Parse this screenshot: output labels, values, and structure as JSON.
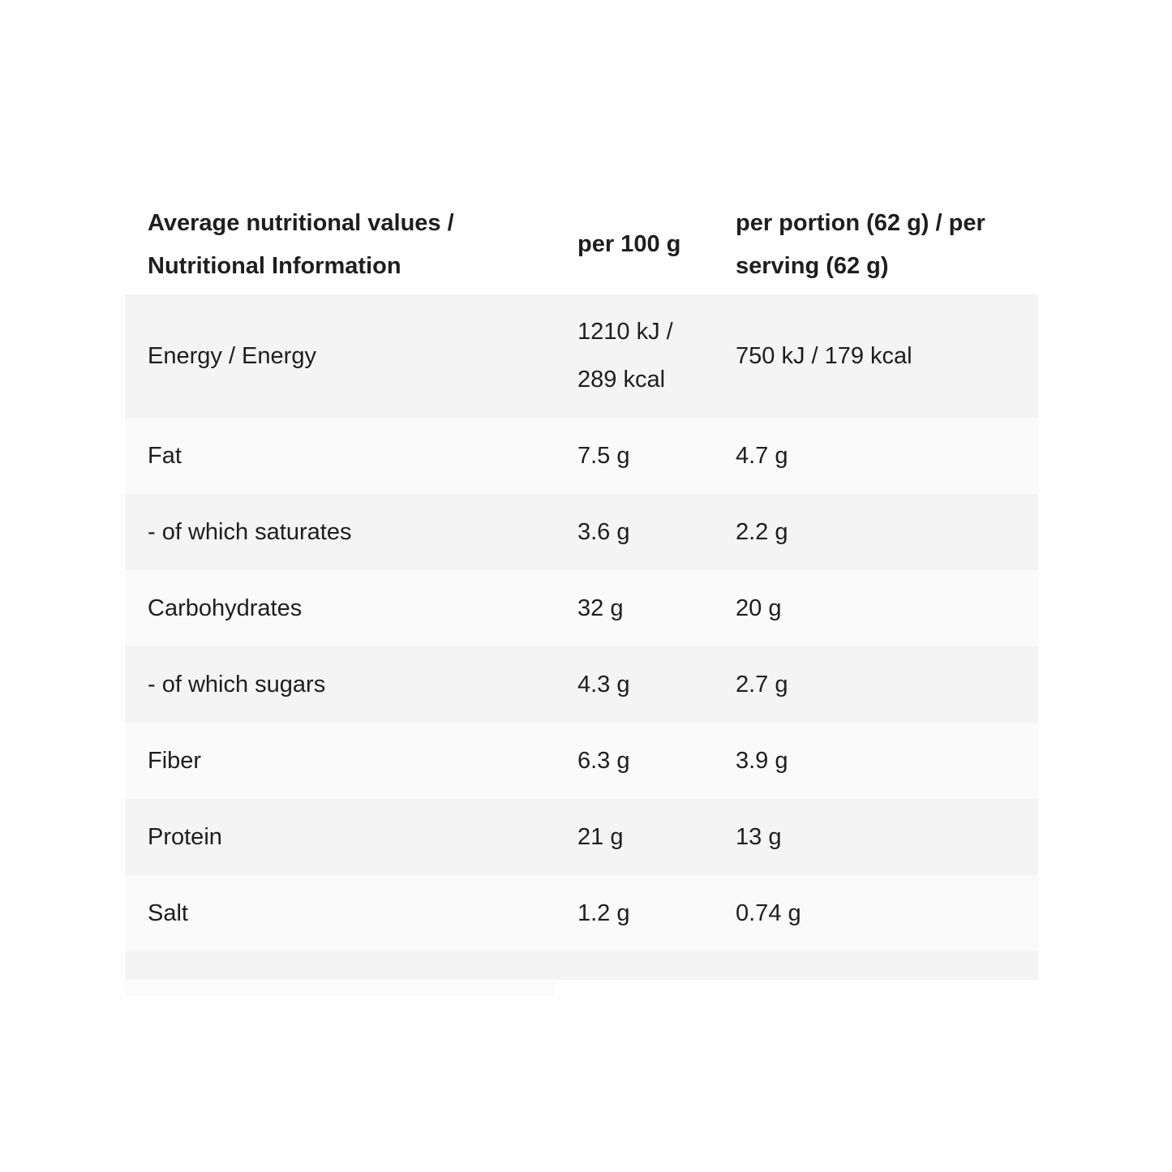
{
  "header": {
    "col1": "Average nutritional values / Nutritional Information",
    "col2": "per 100 g",
    "col3": "per portion (62 g) / per serving (62 g)"
  },
  "rows": [
    {
      "label": "Energy / Energy",
      "per100": "1210 kJ / 289 kcal",
      "portion": "750 kJ / 179 kcal"
    },
    {
      "label": "Fat",
      "per100": "7.5 g",
      "portion": "4.7 g"
    },
    {
      "label": "- of which saturates",
      "per100": "3.6 g",
      "portion": "2.2 g"
    },
    {
      "label": "Carbohydrates",
      "per100": "32 g",
      "portion": "20 g"
    },
    {
      "label": "- of which sugars",
      "per100": "4.3 g",
      "portion": "2.7 g"
    },
    {
      "label": "Fiber",
      "per100": "6.3 g",
      "portion": "3.9 g"
    },
    {
      "label": "Protein",
      "per100": "21 g",
      "portion": "13 g"
    },
    {
      "label": "Salt",
      "per100": "1.2 g",
      "portion": "0.74 g"
    }
  ]
}
